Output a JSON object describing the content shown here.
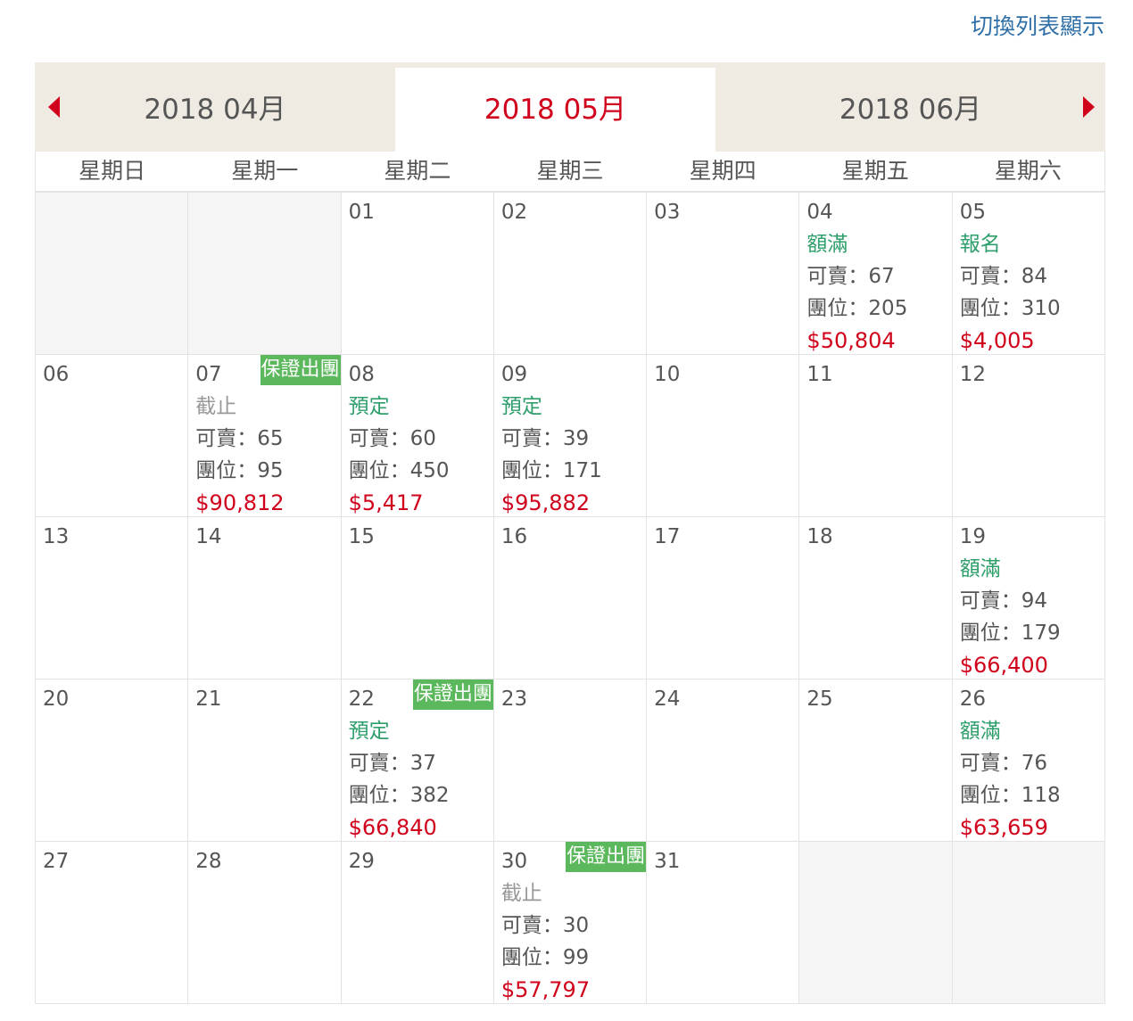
{
  "toggle_label": "切換列表顯示",
  "nav": {
    "prev_month": "2018 04月",
    "current_month": "2018 05月",
    "next_month": "2018 06月"
  },
  "weekdays": [
    "星期日",
    "星期一",
    "星期二",
    "星期三",
    "星期四",
    "星期五",
    "星期六"
  ],
  "labels": {
    "available": "可賣：",
    "seats": "團位："
  },
  "colors": {
    "accent": "#d0021b",
    "status": "#2e9e6b",
    "badge": "#5cb85c",
    "link": "#2f6fa8"
  },
  "days": [
    null,
    null,
    {
      "day": "01"
    },
    {
      "day": "02"
    },
    {
      "day": "03"
    },
    {
      "day": "04",
      "status": "額滿",
      "available": "67",
      "seats": "205",
      "price": "$50,804"
    },
    {
      "day": "05",
      "status": "報名",
      "available": "84",
      "seats": "310",
      "price": "$4,005"
    },
    {
      "day": "06"
    },
    {
      "day": "07",
      "badge": "保證出團",
      "status": "截止",
      "closed": true,
      "available": "65",
      "seats": "95",
      "price": "$90,812"
    },
    {
      "day": "08",
      "status": "預定",
      "available": "60",
      "seats": "450",
      "price": "$5,417"
    },
    {
      "day": "09",
      "status": "預定",
      "available": "39",
      "seats": "171",
      "price": "$95,882"
    },
    {
      "day": "10"
    },
    {
      "day": "11"
    },
    {
      "day": "12"
    },
    {
      "day": "13"
    },
    {
      "day": "14"
    },
    {
      "day": "15"
    },
    {
      "day": "16"
    },
    {
      "day": "17"
    },
    {
      "day": "18"
    },
    {
      "day": "19",
      "status": "額滿",
      "available": "94",
      "seats": "179",
      "price": "$66,400"
    },
    {
      "day": "20"
    },
    {
      "day": "21"
    },
    {
      "day": "22",
      "badge": "保證出團",
      "status": "預定",
      "available": "37",
      "seats": "382",
      "price": "$66,840"
    },
    {
      "day": "23"
    },
    {
      "day": "24"
    },
    {
      "day": "25"
    },
    {
      "day": "26",
      "status": "額滿",
      "available": "76",
      "seats": "118",
      "price": "$63,659"
    },
    {
      "day": "27"
    },
    {
      "day": "28"
    },
    {
      "day": "29"
    },
    {
      "day": "30",
      "badge": "保證出團",
      "status": "截止",
      "closed": true,
      "available": "30",
      "seats": "99",
      "price": "$57,797"
    },
    {
      "day": "31"
    },
    null,
    null
  ]
}
